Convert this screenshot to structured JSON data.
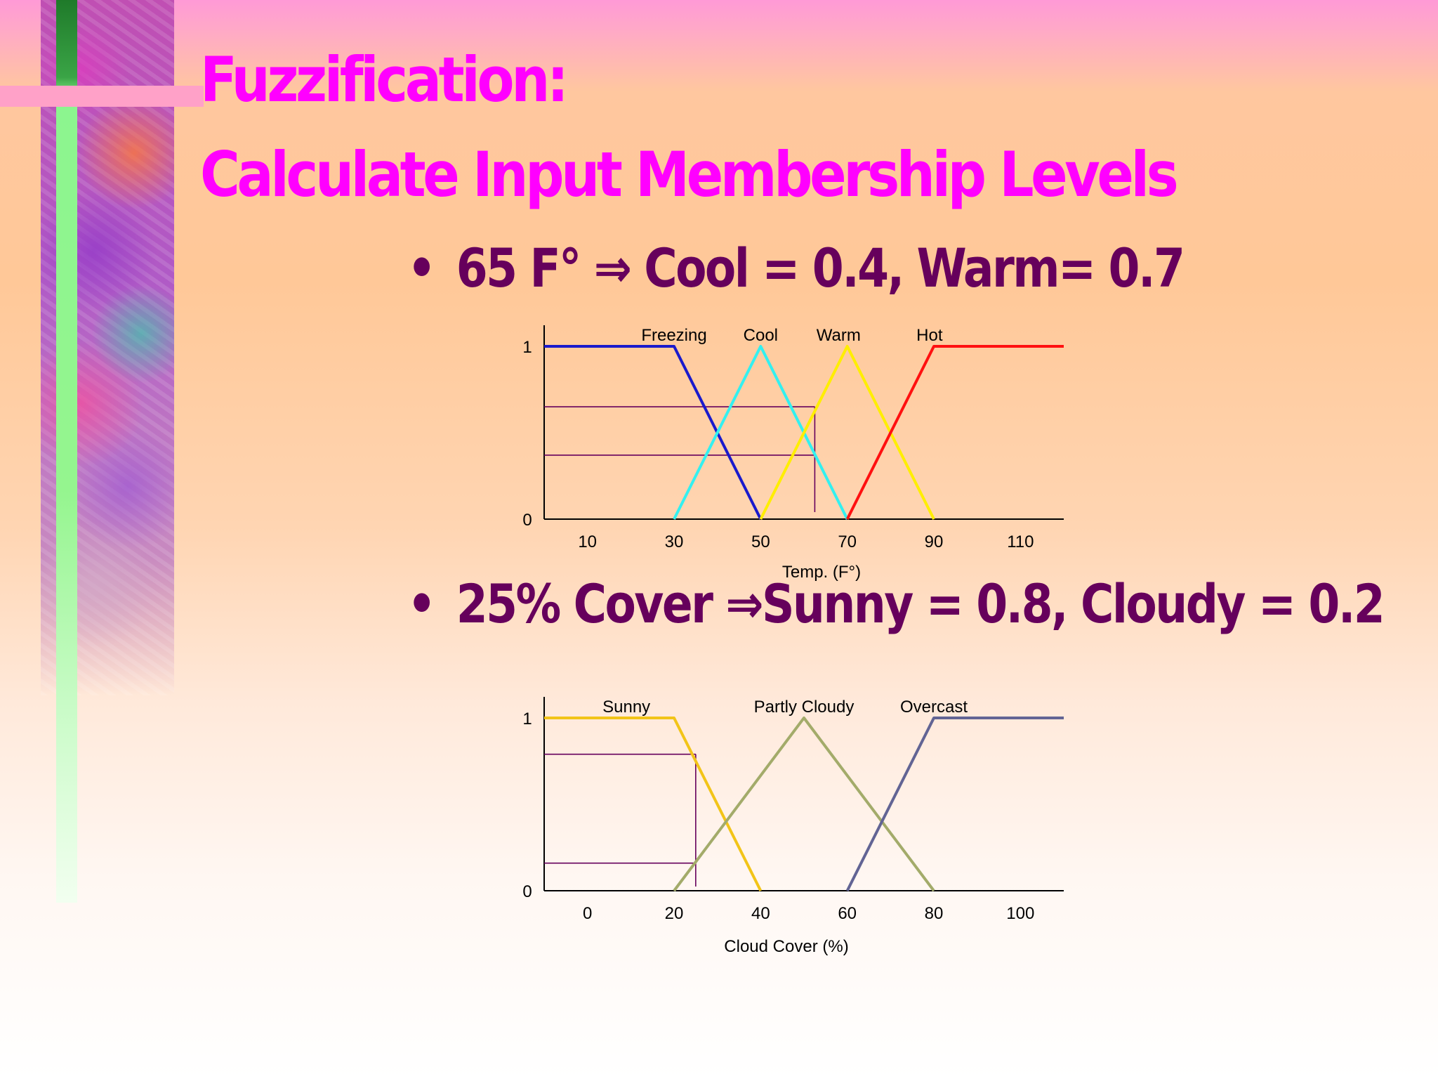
{
  "slide": {
    "title_line1": "Fuzzification:",
    "title_line2": "Calculate Input Membership Levels",
    "bullet_char": "•",
    "bullet1": "65 F° ⇒ Cool = 0.4, Warm=  0.7",
    "bullet2": "25% Cover ⇒Sunny = 0.8, Cloudy = 0.2",
    "colors": {
      "title": "#ff00ff",
      "bullet": "#66005c"
    }
  },
  "chart_data": [
    {
      "type": "line",
      "title": "",
      "xlabel": "Temp. (F°)",
      "ylabel": "",
      "xlim": [
        0,
        120
      ],
      "ylim": [
        0,
        1
      ],
      "x_ticks": [
        "10",
        "30",
        "50",
        "70",
        "90",
        "110"
      ],
      "y_ticks": [
        "0",
        "1"
      ],
      "grid": false,
      "series": [
        {
          "name": "Freezing",
          "color": "#1a1acc",
          "x": [
            0,
            30,
            50
          ],
          "y": [
            1,
            1,
            0
          ]
        },
        {
          "name": "Cool",
          "color": "#33f0f0",
          "x": [
            30,
            50,
            70
          ],
          "y": [
            0,
            1,
            0
          ]
        },
        {
          "name": "Warm",
          "color": "#ffee00",
          "x": [
            50,
            70,
            90
          ],
          "y": [
            0,
            1,
            0
          ]
        },
        {
          "name": "Hot",
          "color": "#ff1010",
          "x": [
            70,
            90,
            120
          ],
          "y": [
            0,
            1,
            1
          ]
        }
      ],
      "guides": {
        "color": "#66005c",
        "x": 62.5,
        "levels": [
          0.65,
          0.37
        ]
      }
    },
    {
      "type": "line",
      "title": "",
      "xlabel": "Cloud Cover (%)",
      "ylabel": "",
      "xlim": [
        -10,
        110
      ],
      "ylim": [
        0,
        1
      ],
      "x_ticks": [
        "0",
        "20",
        "40",
        "60",
        "80",
        "100"
      ],
      "y_ticks": [
        "0",
        "1"
      ],
      "grid": false,
      "series": [
        {
          "name": "Sunny",
          "color": "#f2c418",
          "x": [
            -10,
            20,
            40
          ],
          "y": [
            1,
            1,
            0
          ]
        },
        {
          "name": "Partly Cloudy",
          "color": "#a3ab6a",
          "x": [
            20,
            50,
            80
          ],
          "y": [
            0,
            1,
            0
          ]
        },
        {
          "name": "Overcast",
          "color": "#626494",
          "x": [
            60,
            80,
            110
          ],
          "y": [
            0,
            1,
            1
          ]
        }
      ],
      "guides": {
        "color": "#66005c",
        "x": 25,
        "levels": [
          0.79,
          0.16
        ]
      }
    }
  ]
}
